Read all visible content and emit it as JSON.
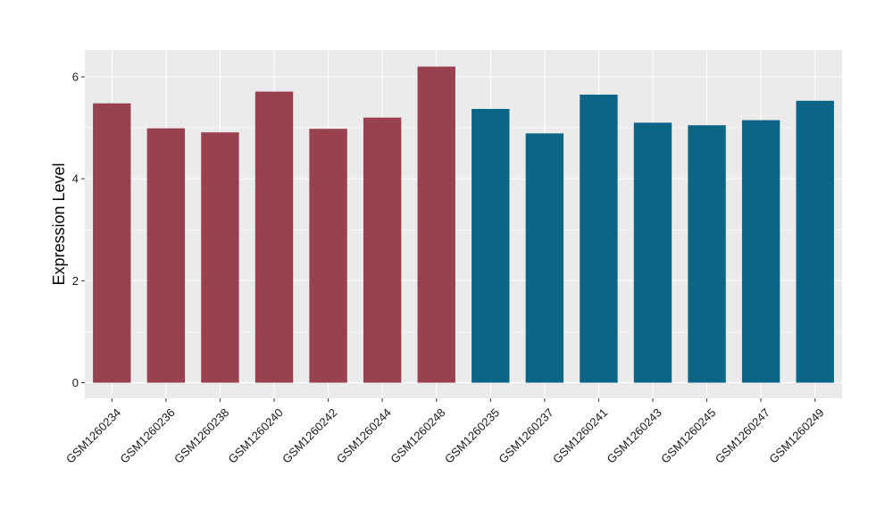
{
  "chart_data": {
    "type": "bar",
    "title": "",
    "xlabel": "",
    "ylabel": "Expression Level",
    "ylim": [
      0,
      6.4
    ],
    "yticks": [
      0,
      2,
      4,
      6
    ],
    "categories": [
      "GSM1260234",
      "GSM1260236",
      "GSM1260238",
      "GSM1260240",
      "GSM1260242",
      "GSM1260244",
      "GSM1260248",
      "GSM1260235",
      "GSM1260237",
      "GSM1260241",
      "GSM1260243",
      "GSM1260245",
      "GSM1260247",
      "GSM1260249"
    ],
    "values": [
      5.48,
      4.99,
      4.91,
      5.71,
      4.98,
      5.2,
      6.2,
      5.37,
      4.89,
      5.65,
      5.1,
      5.05,
      5.15,
      5.53
    ],
    "bar_colors": [
      "#99424f",
      "#99424f",
      "#99424f",
      "#99424f",
      "#99424f",
      "#99424f",
      "#99424f",
      "#0b6585",
      "#0b6585",
      "#0b6585",
      "#0b6585",
      "#0b6585",
      "#0b6585",
      "#0b6585"
    ],
    "grid": true,
    "panel_background": "#ebebeb",
    "legend": "none"
  }
}
